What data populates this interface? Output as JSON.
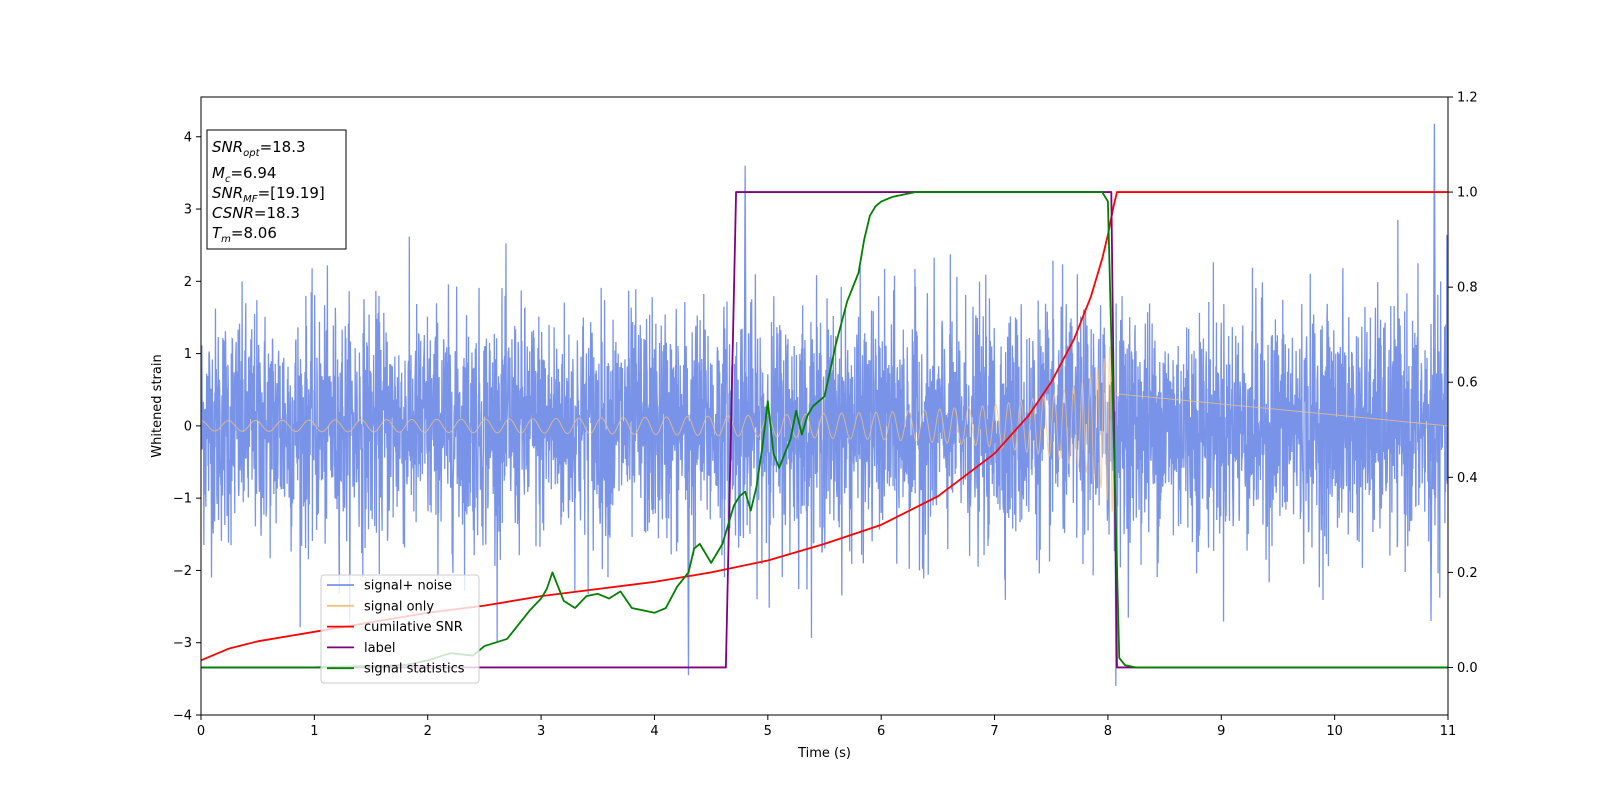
{
  "chart_data": {
    "type": "line",
    "xlabel": "Time (s)",
    "ylabel": "Whitened strain",
    "xlim": [
      0,
      11
    ],
    "ylim_left": [
      -4,
      4.55
    ],
    "ylim_right": [
      -0.1,
      1.2
    ],
    "x_ticks": [
      "0",
      "1",
      "2",
      "3",
      "4",
      "5",
      "6",
      "7",
      "8",
      "9",
      "10",
      "11"
    ],
    "y_ticks_left": [
      "−4",
      "−3",
      "−2",
      "−1",
      "0",
      "1",
      "2",
      "3",
      "4"
    ],
    "y_ticks_right": [
      "0.0",
      "0.2",
      "0.4",
      "0.6",
      "0.8",
      "1.0",
      "1.2"
    ],
    "grid": false,
    "legend_placement": "lower-left",
    "legend": [
      {
        "label": "signal+ noise",
        "color": "#7893e8"
      },
      {
        "label": "signal only",
        "color": "#f5c27e"
      },
      {
        "label": "cumilative SNR",
        "color": "#ff0000"
      },
      {
        "label": "label",
        "color": "#800080"
      },
      {
        "label": "signal statistics",
        "color": "#008000"
      }
    ],
    "info_box": [
      {
        "base": "SNR",
        "sub": "opt",
        "value": "=18.3"
      },
      {
        "base": "M",
        "sub": "c",
        "value": "=6.94"
      },
      {
        "base": "SNR",
        "sub": "MF",
        "value": "=[19.19]"
      },
      {
        "base": "CSNR",
        "sub": "",
        "value": "=18.3"
      },
      {
        "base": "T",
        "sub": "m",
        "value": "=8.06"
      }
    ],
    "series": [
      {
        "name": "signal+ noise",
        "axis": "left",
        "color": "#7893e8",
        "style": "noise band, roughly -2.5 to 2.5 with spikes to ±3.6, peak 4.2 near t=10.9",
        "x_range": [
          0,
          11
        ],
        "spikes": [
          [
            4.3,
            -3.45
          ],
          [
            4.8,
            3.6
          ],
          [
            8.07,
            -3.6
          ],
          [
            10.88,
            4.18
          ],
          [
            10.85,
            -2.7
          ]
        ]
      },
      {
        "name": "signal only",
        "axis": "left",
        "color": "#f5c27e",
        "envelope_t": [
          0,
          1,
          2,
          3,
          4,
          5,
          6,
          6.5,
          7,
          7.5,
          7.8,
          7.95,
          8.0,
          8.03,
          8.05
        ],
        "envelope_amp": [
          0.07,
          0.08,
          0.09,
          0.1,
          0.12,
          0.15,
          0.19,
          0.23,
          0.29,
          0.42,
          0.62,
          0.88,
          1.05,
          1.15,
          1.25
        ],
        "after_merger": 0
      },
      {
        "name": "cumilative SNR",
        "axis": "right",
        "color": "#ff0000",
        "x": [
          0,
          0.25,
          0.5,
          1,
          1.5,
          2,
          2.5,
          3,
          3.5,
          4,
          4.5,
          5,
          5.5,
          6,
          6.5,
          7,
          7.3,
          7.5,
          7.7,
          7.85,
          7.95,
          8.0,
          8.05,
          8.08,
          11
        ],
        "y": [
          0.015,
          0.04,
          0.055,
          0.075,
          0.095,
          0.115,
          0.13,
          0.15,
          0.165,
          0.18,
          0.2,
          0.225,
          0.26,
          0.3,
          0.36,
          0.45,
          0.53,
          0.6,
          0.69,
          0.78,
          0.86,
          0.91,
          0.97,
          1.0,
          1.0
        ]
      },
      {
        "name": "label",
        "axis": "right",
        "color": "#800080",
        "x": [
          0,
          4.63,
          4.72,
          8.03,
          8.08,
          11
        ],
        "y": [
          0,
          0,
          1,
          1,
          0,
          0
        ]
      },
      {
        "name": "signal statistics",
        "axis": "right",
        "color": "#008000",
        "x": [
          0,
          1.0,
          1.8,
          2.0,
          2.2,
          2.4,
          2.5,
          2.7,
          2.8,
          2.9,
          3.0,
          3.05,
          3.1,
          3.2,
          3.3,
          3.4,
          3.5,
          3.6,
          3.7,
          3.8,
          3.9,
          4.0,
          4.1,
          4.2,
          4.3,
          4.35,
          4.4,
          4.5,
          4.55,
          4.6,
          4.7,
          4.75,
          4.8,
          4.85,
          4.9,
          4.95,
          5.0,
          5.05,
          5.1,
          5.2,
          5.25,
          5.3,
          5.35,
          5.4,
          5.5,
          5.6,
          5.7,
          5.8,
          5.85,
          5.9,
          5.95,
          6.0,
          6.1,
          6.2,
          6.3,
          6.5,
          6.8,
          7.0,
          7.5,
          7.95,
          8.0,
          8.05,
          8.1,
          8.15,
          8.25,
          11
        ],
        "y": [
          0.0,
          0.0,
          0.005,
          0.015,
          0.03,
          0.025,
          0.045,
          0.06,
          0.09,
          0.12,
          0.145,
          0.165,
          0.2,
          0.14,
          0.125,
          0.15,
          0.155,
          0.145,
          0.16,
          0.125,
          0.12,
          0.115,
          0.125,
          0.17,
          0.2,
          0.25,
          0.26,
          0.22,
          0.24,
          0.26,
          0.34,
          0.36,
          0.37,
          0.33,
          0.38,
          0.46,
          0.56,
          0.45,
          0.42,
          0.48,
          0.54,
          0.49,
          0.53,
          0.55,
          0.57,
          0.68,
          0.77,
          0.83,
          0.9,
          0.95,
          0.97,
          0.98,
          0.99,
          0.995,
          1.0,
          1.0,
          1.0,
          1.0,
          1.0,
          1.0,
          0.98,
          0.5,
          0.02,
          0.005,
          0.0,
          0.0
        ]
      }
    ]
  }
}
